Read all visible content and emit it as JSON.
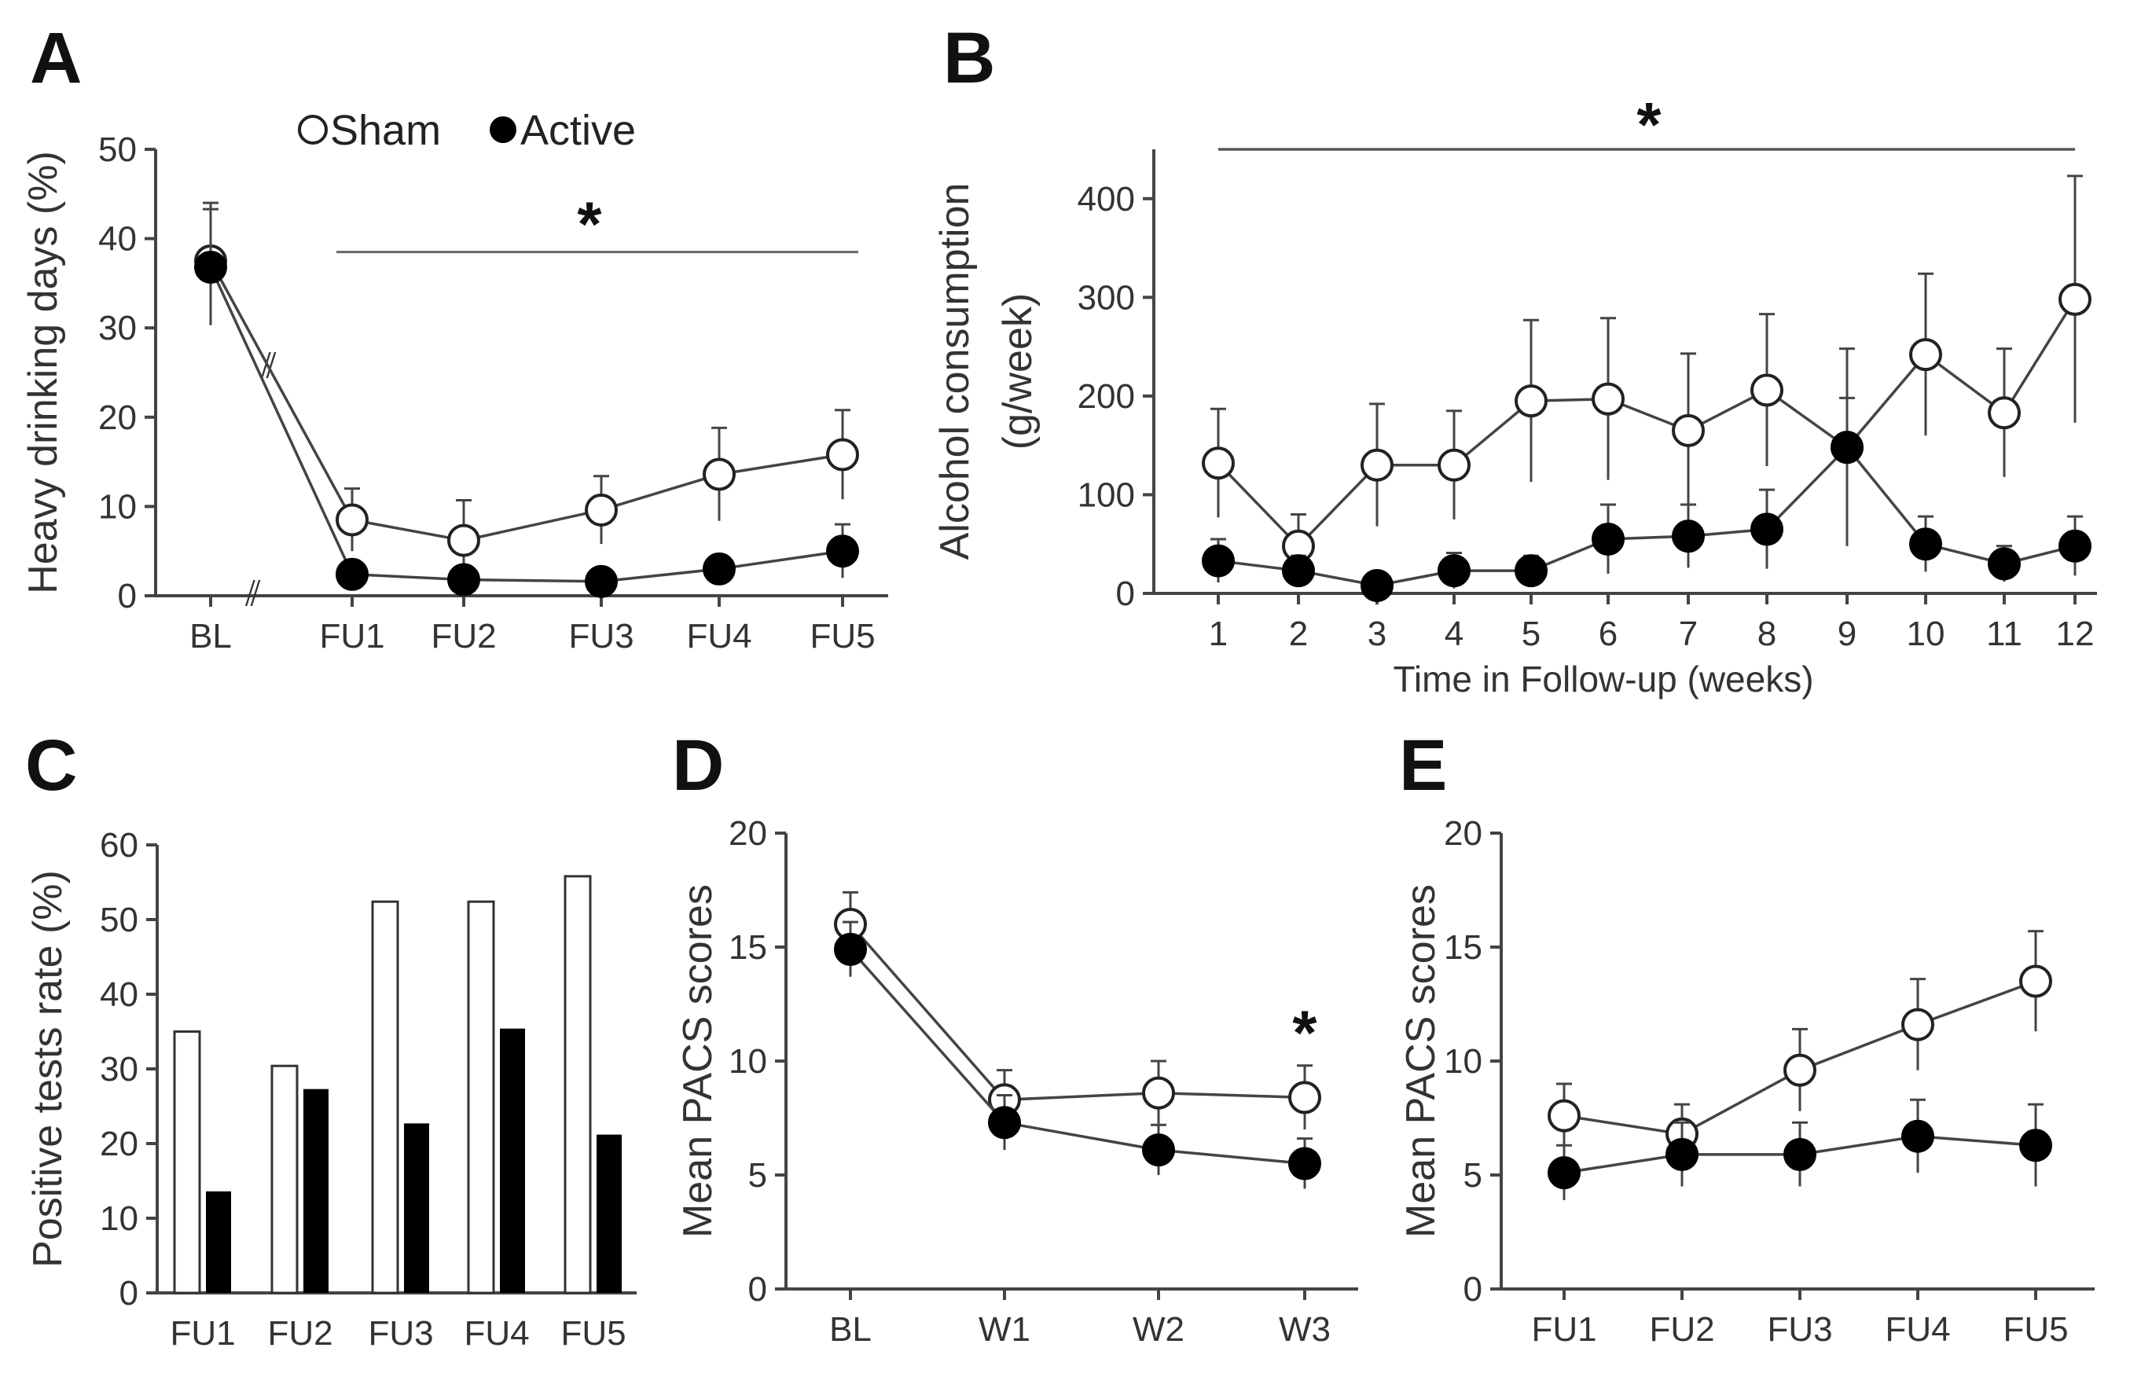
{
  "legend": {
    "sham": "Sham",
    "active": "Active"
  },
  "colors": {
    "sham_fill": "#ffffff",
    "active_fill": "#000000",
    "line": "#444444"
  },
  "chart_data": [
    {
      "panel": "A",
      "type": "line",
      "categories": [
        "BL",
        "FU1",
        "FU2",
        "FU3",
        "FU4",
        "FU5"
      ],
      "series": [
        {
          "name": "Sham",
          "values": [
            37.5,
            8.5,
            6.2,
            9.6,
            13.6,
            15.8
          ],
          "err": [
            6.5,
            3.5,
            4.5,
            3.8,
            5.2,
            5.0
          ]
        },
        {
          "name": "Active",
          "values": [
            36.8,
            2.4,
            1.8,
            1.6,
            3.0,
            5.0
          ],
          "err": [
            6.5,
            1.5,
            1.2,
            1.0,
            1.2,
            3.0
          ]
        }
      ],
      "ylabel": "Heavy drinking days (%)",
      "ylim": [
        0,
        50
      ],
      "yticks": [
        0,
        10,
        20,
        30,
        40,
        50
      ],
      "axis_break": true,
      "significance": {
        "label": "*",
        "span": [
          "FU1",
          "FU5"
        ]
      }
    },
    {
      "panel": "B",
      "type": "line",
      "x": [
        1,
        2,
        3,
        4,
        5,
        6,
        7,
        8,
        9,
        10,
        11,
        12
      ],
      "series": [
        {
          "name": "Sham",
          "values": [
            132,
            48,
            130,
            130,
            195,
            197,
            165,
            206,
            148,
            242,
            183,
            298
          ],
          "err": [
            55,
            32,
            62,
            55,
            82,
            82,
            78,
            77,
            100,
            82,
            65,
            125
          ]
        },
        {
          "name": "Active",
          "values": [
            33,
            23,
            8,
            23,
            23,
            55,
            58,
            65,
            148,
            50,
            30,
            48
          ],
          "err": [
            22,
            15,
            6,
            18,
            15,
            35,
            32,
            40,
            50,
            28,
            18,
            30
          ]
        }
      ],
      "ylabel": "Alcohol consumption (g/week)",
      "xlabel": "Time in Follow-up (weeks)",
      "ylim": [
        0,
        450
      ],
      "yticks": [
        0,
        100,
        200,
        300,
        400
      ],
      "significance": {
        "label": "*",
        "span": [
          1,
          12
        ]
      }
    },
    {
      "panel": "C",
      "type": "bar",
      "categories": [
        "FU1",
        "FU2",
        "FU3",
        "FU4",
        "FU5"
      ],
      "series": [
        {
          "name": "Sham",
          "values": [
            35,
            30.4,
            52.4,
            52.4,
            55.8
          ]
        },
        {
          "name": "Active",
          "values": [
            13.6,
            27.3,
            22.7,
            35.4,
            21.2
          ]
        }
      ],
      "ylabel": "Positive tests rate (%)",
      "ylim": [
        0,
        60
      ],
      "yticks": [
        0,
        10,
        20,
        30,
        40,
        50,
        60
      ]
    },
    {
      "panel": "D",
      "type": "line",
      "categories": [
        "BL",
        "W1",
        "W2",
        "W3"
      ],
      "series": [
        {
          "name": "Sham",
          "values": [
            16.0,
            8.3,
            8.6,
            8.4
          ],
          "err": [
            1.4,
            1.3,
            1.4,
            1.4
          ]
        },
        {
          "name": "Active",
          "values": [
            14.9,
            7.3,
            6.1,
            5.5
          ],
          "err": [
            1.2,
            1.2,
            1.1,
            1.1
          ]
        }
      ],
      "ylabel": "Mean PACS scores",
      "ylim": [
        0,
        20
      ],
      "yticks": [
        0,
        5,
        10,
        15,
        20
      ],
      "significance": {
        "label": "*",
        "at": "W3"
      }
    },
    {
      "panel": "E",
      "type": "line",
      "categories": [
        "FU1",
        "FU2",
        "FU3",
        "FU4",
        "FU5"
      ],
      "series": [
        {
          "name": "Sham",
          "values": [
            7.6,
            6.8,
            9.6,
            11.6,
            13.5
          ],
          "err": [
            1.4,
            1.3,
            1.8,
            2.0,
            2.2
          ]
        },
        {
          "name": "Active",
          "values": [
            5.1,
            5.9,
            5.9,
            6.7,
            6.3
          ],
          "err": [
            1.2,
            1.4,
            1.4,
            1.6,
            1.8
          ]
        }
      ],
      "ylabel": "Mean PACS scores",
      "ylim": [
        0,
        20
      ],
      "yticks": [
        0,
        5,
        10,
        15,
        20
      ]
    }
  ]
}
